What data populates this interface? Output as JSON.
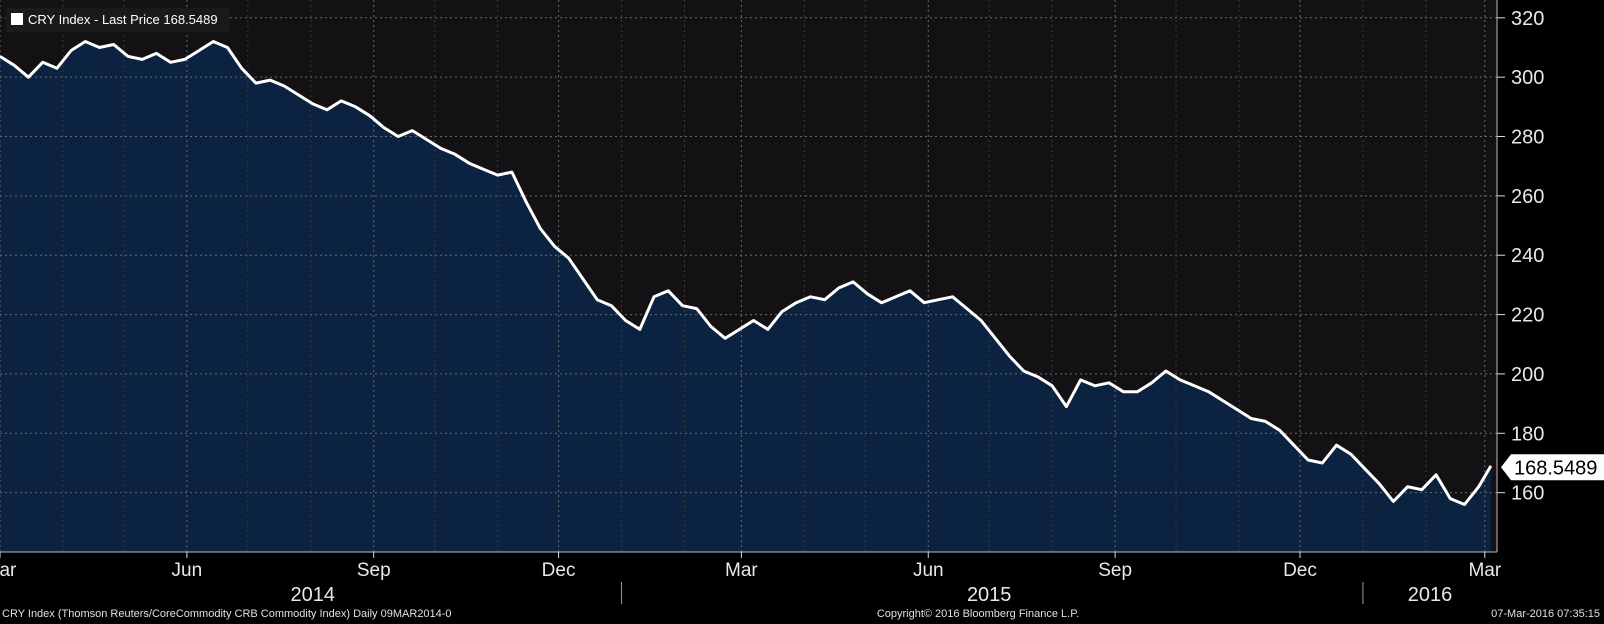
{
  "legend": {
    "label": "CRY Index - Last Price 168.5489"
  },
  "last_price_label": "168.5489",
  "footer": {
    "left": "CRY Index (Thomson Reuters/CoreCommodity CRB Commodity Index)  Daily 09MAR2014-0",
    "center": "Copyright© 2016 Bloomberg Finance L.P.",
    "right": "07-Mar-2016 07:35:15"
  },
  "colors": {
    "background": "#000000",
    "plot_background": "#141114",
    "area_fill": "#0b2240",
    "line": "#ffffff",
    "grid": "#6a6a6a"
  },
  "chart_data": {
    "type": "area",
    "title": "",
    "xlabel": "",
    "ylabel": "",
    "ylim": [
      140,
      326
    ],
    "xlim": [
      "2014-03-01",
      "2016-03-07"
    ],
    "y_ticks": [
      160,
      180,
      200,
      220,
      240,
      260,
      280,
      300,
      320
    ],
    "x_ticks": [
      {
        "date": "2014-03-01",
        "label": "Mar"
      },
      {
        "date": "2014-06-01",
        "label": "Jun"
      },
      {
        "date": "2014-09-01",
        "label": "Sep"
      },
      {
        "date": "2014-12-01",
        "label": "Dec"
      },
      {
        "date": "2015-03-01",
        "label": "Mar"
      },
      {
        "date": "2015-06-01",
        "label": "Jun"
      },
      {
        "date": "2015-09-01",
        "label": "Sep"
      },
      {
        "date": "2015-12-01",
        "label": "Dec"
      },
      {
        "date": "2016-03-01",
        "label": "Mar"
      }
    ],
    "year_labels": [
      {
        "label": "2014",
        "center": "2014-08-02"
      },
      {
        "label": "2015",
        "center": "2015-07-01"
      },
      {
        "label": "2016",
        "center": "2016-02-03"
      }
    ],
    "year_dividers": [
      "2015-01-01",
      "2016-01-01"
    ],
    "grid": true,
    "legend_position": "top-left",
    "series": [
      {
        "name": "CRY Index - Last Price",
        "last_value": 168.5489,
        "x": [
          "2014-03-01",
          "2014-03-08",
          "2014-03-15",
          "2014-03-22",
          "2014-03-29",
          "2014-04-05",
          "2014-04-12",
          "2014-04-19",
          "2014-04-26",
          "2014-05-03",
          "2014-05-10",
          "2014-05-17",
          "2014-05-24",
          "2014-05-31",
          "2014-06-07",
          "2014-06-14",
          "2014-06-21",
          "2014-06-28",
          "2014-07-05",
          "2014-07-12",
          "2014-07-19",
          "2014-07-26",
          "2014-08-02",
          "2014-08-09",
          "2014-08-16",
          "2014-08-23",
          "2014-08-30",
          "2014-09-06",
          "2014-09-13",
          "2014-09-20",
          "2014-09-27",
          "2014-10-04",
          "2014-10-11",
          "2014-10-18",
          "2014-10-25",
          "2014-11-01",
          "2014-11-08",
          "2014-11-15",
          "2014-11-22",
          "2014-11-29",
          "2014-12-06",
          "2014-12-13",
          "2014-12-20",
          "2014-12-27",
          "2015-01-03",
          "2015-01-10",
          "2015-01-17",
          "2015-01-24",
          "2015-01-31",
          "2015-02-07",
          "2015-02-14",
          "2015-02-21",
          "2015-02-28",
          "2015-03-07",
          "2015-03-14",
          "2015-03-21",
          "2015-03-28",
          "2015-04-04",
          "2015-04-11",
          "2015-04-18",
          "2015-04-25",
          "2015-05-02",
          "2015-05-09",
          "2015-05-16",
          "2015-05-23",
          "2015-05-30",
          "2015-06-06",
          "2015-06-13",
          "2015-06-20",
          "2015-06-27",
          "2015-07-04",
          "2015-07-11",
          "2015-07-18",
          "2015-07-25",
          "2015-08-01",
          "2015-08-08",
          "2015-08-15",
          "2015-08-22",
          "2015-08-29",
          "2015-09-05",
          "2015-09-12",
          "2015-09-19",
          "2015-09-26",
          "2015-10-03",
          "2015-10-10",
          "2015-10-17",
          "2015-10-24",
          "2015-10-31",
          "2015-11-07",
          "2015-11-14",
          "2015-11-21",
          "2015-11-28",
          "2015-12-05",
          "2015-12-12",
          "2015-12-19",
          "2015-12-26",
          "2016-01-02",
          "2016-01-09",
          "2016-01-16",
          "2016-01-23",
          "2016-01-30",
          "2016-02-06",
          "2016-02-13",
          "2016-02-20",
          "2016-02-27",
          "2016-03-04"
        ],
        "values": [
          307,
          304,
          300,
          305,
          303,
          309,
          312,
          310,
          311,
          307,
          306,
          308,
          305,
          306,
          309,
          312,
          310,
          303,
          298,
          299,
          297,
          294,
          291,
          289,
          292,
          290,
          287,
          283,
          280,
          282,
          279,
          276,
          274,
          271,
          269,
          267,
          268,
          258,
          249,
          243,
          239,
          232,
          225,
          223,
          218,
          215,
          226,
          228,
          223,
          222,
          216,
          212,
          215,
          218,
          215,
          221,
          224,
          226,
          225,
          229,
          231,
          227,
          224,
          226,
          228,
          224,
          225,
          226,
          222,
          218,
          212,
          206,
          201,
          199,
          196,
          189,
          198,
          196,
          197,
          194,
          194,
          197,
          201,
          198,
          196,
          194,
          191,
          188,
          185,
          184,
          181,
          176,
          171,
          170,
          176,
          173,
          168,
          163,
          157,
          162,
          161,
          166,
          158,
          156,
          162,
          169
        ]
      }
    ]
  }
}
